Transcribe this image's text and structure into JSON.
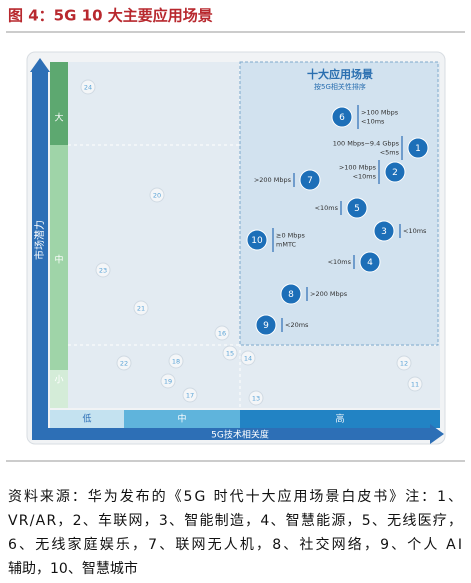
{
  "title": "图 4：5G 10 大主要应用场景",
  "y_axis": {
    "label": "市场潜力",
    "levels": [
      "大",
      "中",
      "小"
    ]
  },
  "x_axis": {
    "label": "5G技术相关度",
    "levels": [
      "低",
      "中",
      "高"
    ]
  },
  "highlight": {
    "title": "十大应用场景",
    "subtitle": "按5G相关性排序"
  },
  "top_scenarios": [
    {
      "label": "1",
      "note": [
        "100 Mbps~9.4 Gbps",
        "<5ms"
      ]
    },
    {
      "label": "2",
      "note": [
        ">100 Mbps",
        "<10ms"
      ]
    },
    {
      "label": "3",
      "note": [
        "<10ms"
      ]
    },
    {
      "label": "4",
      "note": [
        "<10ms"
      ]
    },
    {
      "label": "5",
      "note": [
        "<10ms"
      ]
    },
    {
      "label": "6",
      "note": [
        ">100 Mbps",
        "<10ms"
      ]
    },
    {
      "label": "7",
      "note": [
        ">200 Mbps"
      ]
    },
    {
      "label": "8",
      "note": [
        ">200 Mbps"
      ]
    },
    {
      "label": "9",
      "note": [
        "<20ms"
      ]
    },
    {
      "label": "10",
      "note": [
        "≥0 Mbps",
        "mMTC"
      ]
    }
  ],
  "other_scenarios": [
    "11",
    "12",
    "13",
    "14",
    "15",
    "16",
    "17",
    "18",
    "19",
    "20",
    "21",
    "22",
    "23",
    "24"
  ],
  "caption": [
    "资料来源：华为发布的《5G 时代十大应用场景白皮书》注：1、",
    "VR/AR，2、车联网，3、智能制造，4、智慧能源，5、无线医疗，",
    "6、无线家庭娱乐，7、联网无人机，8、社交网络，9、个人 AI",
    "辅助，10、智慧城市"
  ]
}
